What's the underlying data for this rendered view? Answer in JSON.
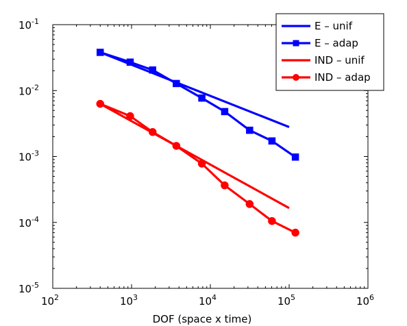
{
  "chart_data": {
    "type": "line",
    "title": "",
    "xlabel": "DOF (space x time)",
    "ylabel": "",
    "xscale": "log",
    "yscale": "log",
    "xlim": [
      100,
      1000000
    ],
    "ylim": [
      1e-05,
      0.1
    ],
    "grid": false,
    "legend": "top-right",
    "xticks": [
      {
        "base": "10",
        "exp": "2"
      },
      {
        "base": "10",
        "exp": "3"
      },
      {
        "base": "10",
        "exp": "4"
      },
      {
        "base": "10",
        "exp": "5"
      },
      {
        "base": "10",
        "exp": "6"
      }
    ],
    "yticks": [
      {
        "base": "10",
        "exp": "-5"
      },
      {
        "base": "10",
        "exp": "-4"
      },
      {
        "base": "10",
        "exp": "-3"
      },
      {
        "base": "10",
        "exp": "-2"
      },
      {
        "base": "10",
        "exp": "-1"
      }
    ],
    "series": [
      {
        "name": "E – unif",
        "color": "#0000ff",
        "marker": "none",
        "x": [
          400,
          100000
        ],
        "y": [
          0.038,
          0.0028
        ]
      },
      {
        "name": "E – adap",
        "color": "#0000ff",
        "marker": "square",
        "x": [
          400,
          960,
          1850,
          3700,
          7800,
          15200,
          31500,
          60500,
          120000
        ],
        "y": [
          0.038,
          0.027,
          0.0205,
          0.0128,
          0.0077,
          0.0048,
          0.0025,
          0.00172,
          0.00098
        ]
      },
      {
        "name": "IND – unif",
        "color": "#ff0000",
        "marker": "none",
        "x": [
          400,
          100000
        ],
        "y": [
          0.0063,
          0.000165
        ]
      },
      {
        "name": "IND – adap",
        "color": "#ff0000",
        "marker": "circle",
        "x": [
          400,
          960,
          1850,
          3700,
          7800,
          15200,
          31500,
          60500,
          120000
        ],
        "y": [
          0.0063,
          0.0041,
          0.00235,
          0.00145,
          0.00078,
          0.000365,
          0.00019,
          0.000105,
          7e-05
        ]
      }
    ]
  }
}
